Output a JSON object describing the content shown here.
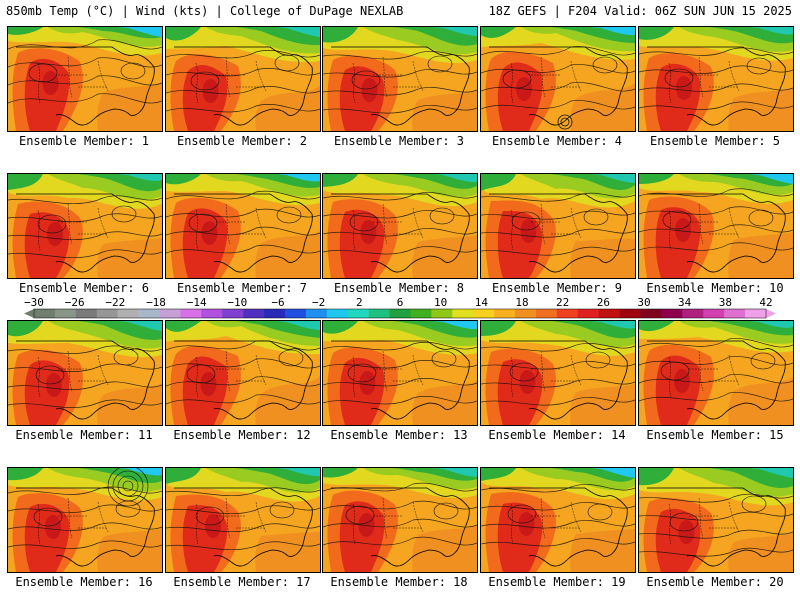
{
  "header": {
    "left": "850mb Temp (°C) | Wind (kts) | College of DuPage NEXLAB",
    "right": "18Z GEFS | F204 Valid: 06Z SUN JUN 15 2025"
  },
  "panels": [
    {
      "label": "Ensemble Member: 1"
    },
    {
      "label": "Ensemble Member: 2"
    },
    {
      "label": "Ensemble Member: 3"
    },
    {
      "label": "Ensemble Member: 4"
    },
    {
      "label": "Ensemble Member: 5"
    },
    {
      "label": "Ensemble Member: 6"
    },
    {
      "label": "Ensemble Member: 7"
    },
    {
      "label": "Ensemble Member: 8"
    },
    {
      "label": "Ensemble Member: 9"
    },
    {
      "label": "Ensemble Member: 10"
    },
    {
      "label": "Ensemble Member: 11"
    },
    {
      "label": "Ensemble Member: 12"
    },
    {
      "label": "Ensemble Member: 13"
    },
    {
      "label": "Ensemble Member: 14"
    },
    {
      "label": "Ensemble Member: 15"
    },
    {
      "label": "Ensemble Member: 16"
    },
    {
      "label": "Ensemble Member: 17"
    },
    {
      "label": "Ensemble Member: 18"
    },
    {
      "label": "Ensemble Member: 19"
    },
    {
      "label": "Ensemble Member: 20"
    }
  ],
  "colorbar": {
    "ticks": [
      "−30",
      "−26",
      "−22",
      "−18",
      "−14",
      "−10",
      "−6",
      "−2",
      "2",
      "6",
      "10",
      "14",
      "18",
      "22",
      "26",
      "30",
      "34",
      "38",
      "42"
    ],
    "colors": [
      "#6f7f6f",
      "#8a958a",
      "#7a7a7a",
      "#969696",
      "#b0b0b0",
      "#a8b8c8",
      "#c8a0d8",
      "#d870e8",
      "#b050e0",
      "#8040d0",
      "#5030c0",
      "#2a2ab8",
      "#2050e0",
      "#2090f0",
      "#20c8f0",
      "#20d8c0",
      "#20c080",
      "#20a040",
      "#40b020",
      "#90c818",
      "#e0e020",
      "#f8d020",
      "#f8b020",
      "#f09020",
      "#f07020",
      "#f04020",
      "#e02020",
      "#c01010",
      "#a00010",
      "#800020",
      "#900050",
      "#b02080",
      "#d040b0",
      "#e070d0",
      "#f0a0e8"
    ]
  },
  "palette": {
    "hot": "#e02a1a",
    "warm": "#f26a1c",
    "orange": "#f5a51f",
    "yellow": "#e3d820",
    "lime": "#9acb20",
    "green": "#2fae3a",
    "teal": "#20c8b0",
    "cyan": "#20c8f0",
    "deep": "#e22020"
  }
}
